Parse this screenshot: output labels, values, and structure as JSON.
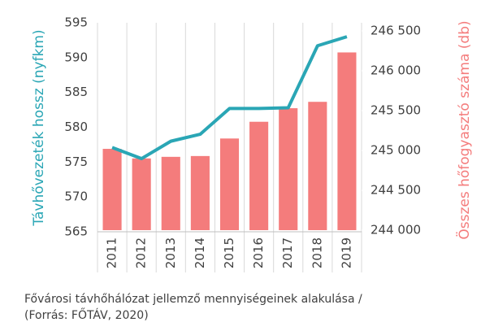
{
  "chart_data": {
    "type": "combo",
    "categories": [
      "2011",
      "2012",
      "2013",
      "2014",
      "2015",
      "2016",
      "2017",
      "2018",
      "2019"
    ],
    "series": [
      {
        "name": "Összes hőfogyasztó száma (db)",
        "type": "bar",
        "axis": "y2",
        "color": "#f47c7c",
        "values": [
          245020,
          244900,
          244920,
          244930,
          245150,
          245360,
          245530,
          245610,
          246230
        ]
      },
      {
        "name": "Távhővezeték hossz (nyfkm)",
        "type": "line",
        "axis": "y",
        "color": "#2aa6b5",
        "values": [
          577.1,
          575.5,
          578,
          579,
          582.7,
          582.7,
          582.8,
          591.7,
          593
        ]
      }
    ],
    "ylabel": "Távhővezeték hossz (nyfkm)",
    "y2label": "Összes hőfogyasztó száma (db)",
    "ylim": [
      565,
      595
    ],
    "yticks": [
      565,
      570,
      575,
      580,
      585,
      590,
      595
    ],
    "y2lim": [
      244000,
      246500
    ],
    "y2ticks": [
      {
        "value": 244000,
        "label": "244 000"
      },
      {
        "value": 244500,
        "label": "244 500"
      },
      {
        "value": 245000,
        "label": "245 000"
      },
      {
        "value": 245500,
        "label": "245 500"
      },
      {
        "value": 246000,
        "label": "246 000"
      },
      {
        "value": 246500,
        "label": "246 500"
      }
    ],
    "caption": [
      "Fővárosi távhőhálózat jellemző mennyiségeinek alakulása /",
      "(Forrás: FŐTÁV, 2020)"
    ]
  }
}
